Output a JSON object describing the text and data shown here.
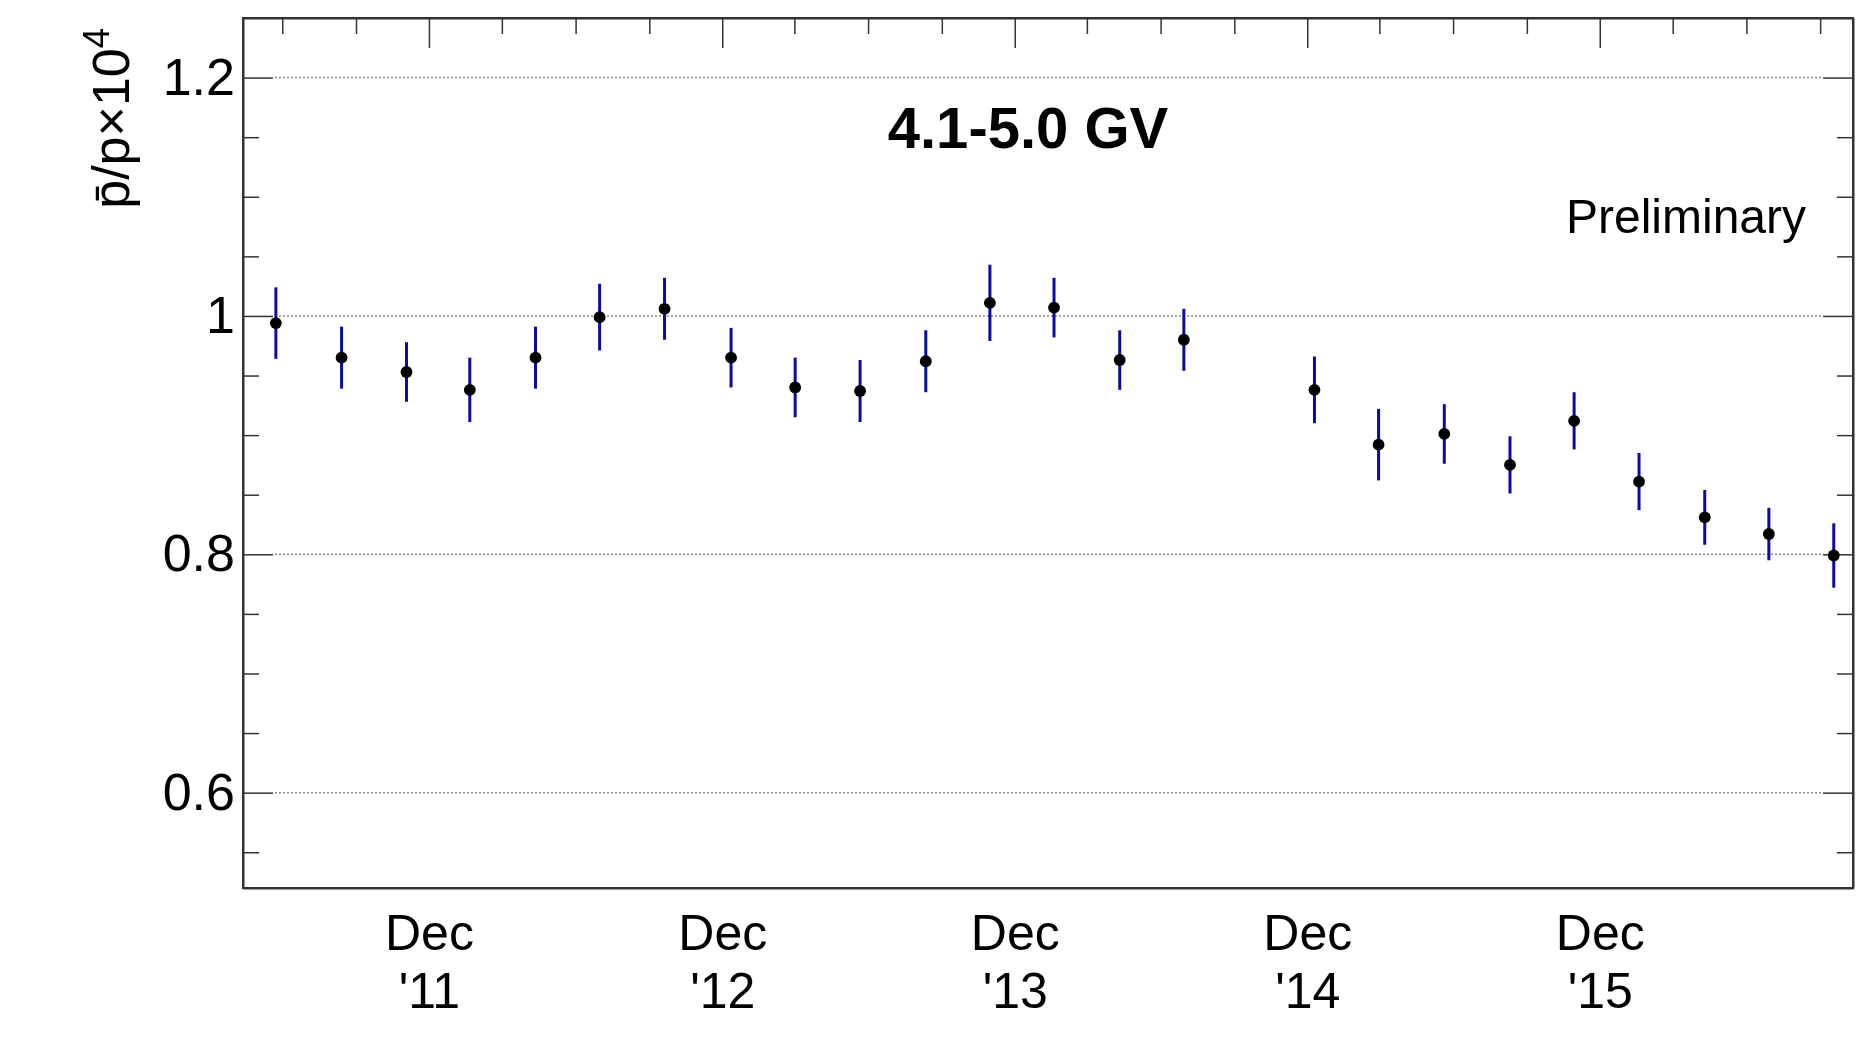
{
  "chart_data": {
    "type": "scatter",
    "title": "4.1-5.0 GV",
    "ylabel": "p̄/p×10$^{4}$",
    "annotations": [
      "Preliminary"
    ],
    "x": [
      "2011-05-24",
      "2011-08-14",
      "2011-11-03",
      "2012-01-21",
      "2012-04-12",
      "2012-07-01",
      "2012-09-20",
      "2012-12-12",
      "2013-03-02",
      "2013-05-22",
      "2013-08-12",
      "2013-10-31",
      "2014-01-19",
      "2014-04-11",
      "2014-06-30",
      "2014-12-10",
      "2015-02-28",
      "2015-05-21",
      "2015-08-11",
      "2015-10-30",
      "2016-01-19",
      "2016-04-10",
      "2016-06-29",
      "2016-09-18"
    ],
    "series": [
      {
        "color": "#000000",
        "values": [
          0.994,
          0.965,
          0.953,
          0.938,
          0.965,
          0.999,
          1.006,
          0.965,
          0.94,
          0.937,
          0.962,
          1.011,
          1.007,
          0.963,
          0.98,
          0.938,
          0.892,
          0.901,
          0.875,
          0.912,
          0.861,
          0.831,
          0.817,
          0.799
        ],
        "errors": [
          0.03,
          0.026,
          0.025,
          0.027,
          0.026,
          0.028,
          0.026,
          0.025,
          0.025,
          0.026,
          0.026,
          0.032,
          0.025,
          0.025,
          0.026,
          0.028,
          0.03,
          0.025,
          0.024,
          0.024,
          0.024,
          0.023,
          0.022,
          0.027
        ]
      }
    ],
    "xlim": [
      "2011-04-13",
      "2016-10-12"
    ],
    "xticks": [
      {
        "value": "2011-06-01",
        "label": null
      },
      {
        "value": "2011-09-01",
        "label": null
      },
      {
        "value": "2011-12-01",
        "label": "Dec\n'11"
      },
      {
        "value": "2012-03-01",
        "label": null
      },
      {
        "value": "2012-06-01",
        "label": null
      },
      {
        "value": "2012-09-01",
        "label": null
      },
      {
        "value": "2012-12-01",
        "label": "Dec\n'12"
      },
      {
        "value": "2013-03-01",
        "label": null
      },
      {
        "value": "2013-06-01",
        "label": null
      },
      {
        "value": "2013-09-01",
        "label": null
      },
      {
        "value": "2013-12-01",
        "label": "Dec\n'13"
      },
      {
        "value": "2014-03-01",
        "label": null
      },
      {
        "value": "2014-06-01",
        "label": null
      },
      {
        "value": "2014-09-01",
        "label": null
      },
      {
        "value": "2014-12-01",
        "label": "Dec\n'14"
      },
      {
        "value": "2015-03-01",
        "label": null
      },
      {
        "value": "2015-06-01",
        "label": null
      },
      {
        "value": "2015-09-01",
        "label": null
      },
      {
        "value": "2015-12-01",
        "label": "Dec\n'15"
      },
      {
        "value": "2016-03-01",
        "label": null
      },
      {
        "value": "2016-06-01",
        "label": null
      },
      {
        "value": "2016-09-01",
        "label": null
      }
    ],
    "ylim": [
      0.52,
      1.25
    ],
    "yticks": [
      {
        "value": 0.55,
        "label": null
      },
      0.6,
      {
        "value": 0.65,
        "label": null
      },
      {
        "value": 0.7,
        "label": null
      },
      {
        "value": 0.75,
        "label": null
      },
      0.8,
      {
        "value": 0.85,
        "label": null
      },
      {
        "value": 0.9,
        "label": null
      },
      {
        "value": 0.95,
        "label": null
      },
      1,
      {
        "value": 1.05,
        "label": null
      },
      {
        "value": 1.1,
        "label": null
      },
      {
        "value": 1.15,
        "label": null
      },
      1.2
    ],
    "grid": "y",
    "marker": "circle"
  }
}
